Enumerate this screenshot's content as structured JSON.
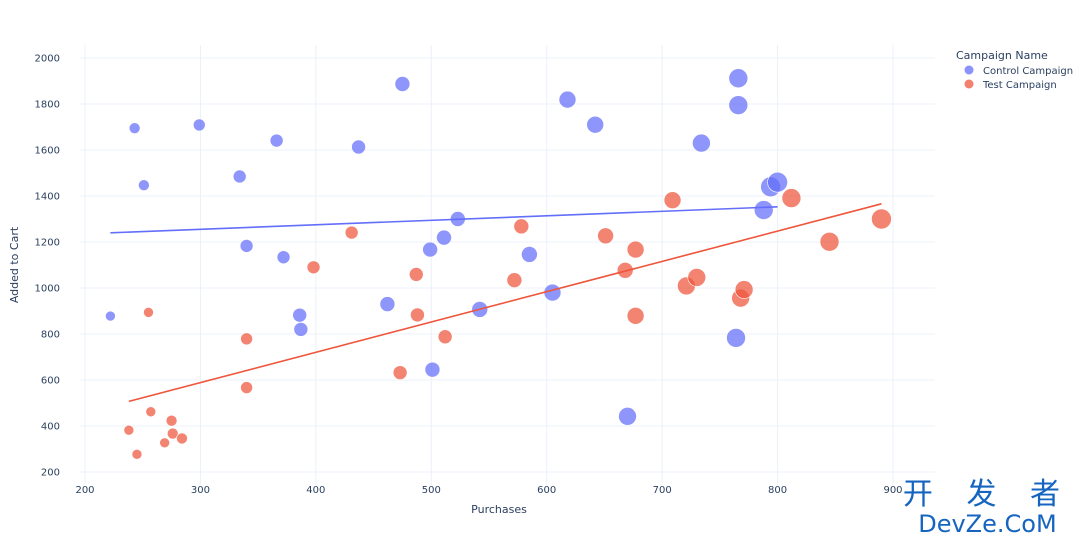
{
  "chart_data": {
    "type": "scatter",
    "xlabel": "Purchases",
    "ylabel": "Added to Cart",
    "xlim": [
      175,
      935
    ],
    "ylim": [
      185,
      2060
    ],
    "xticks": [
      200,
      300,
      400,
      500,
      600,
      700,
      800,
      900
    ],
    "yticks": [
      200,
      400,
      600,
      800,
      1000,
      1200,
      1400,
      1600,
      1800,
      2000
    ],
    "grid": true,
    "legend": {
      "title": "Campaign Name",
      "position": "top-right"
    },
    "series": [
      {
        "name": "Control Campaign",
        "color": "#636efa",
        "points": [
          {
            "x": 222,
            "y": 878,
            "size": 5
          },
          {
            "x": 243,
            "y": 1695,
            "size": 5.5
          },
          {
            "x": 251,
            "y": 1447,
            "size": 5.5
          },
          {
            "x": 299,
            "y": 1709,
            "size": 6
          },
          {
            "x": 334,
            "y": 1485,
            "size": 6.5
          },
          {
            "x": 340,
            "y": 1183,
            "size": 6.5
          },
          {
            "x": 366,
            "y": 1641,
            "size": 6.5
          },
          {
            "x": 372,
            "y": 1134,
            "size": 6.5
          },
          {
            "x": 386,
            "y": 882,
            "size": 7
          },
          {
            "x": 387,
            "y": 820,
            "size": 7
          },
          {
            "x": 437,
            "y": 1613,
            "size": 7
          },
          {
            "x": 462,
            "y": 930,
            "size": 7.5
          },
          {
            "x": 475,
            "y": 1887,
            "size": 7.5
          },
          {
            "x": 499,
            "y": 1167,
            "size": 7.5
          },
          {
            "x": 501,
            "y": 645,
            "size": 7.5
          },
          {
            "x": 511,
            "y": 1219,
            "size": 7.5
          },
          {
            "x": 523,
            "y": 1300,
            "size": 7.5
          },
          {
            "x": 542,
            "y": 907,
            "size": 8
          },
          {
            "x": 585,
            "y": 1146,
            "size": 8
          },
          {
            "x": 605,
            "y": 980,
            "size": 8.5
          },
          {
            "x": 618,
            "y": 1819,
            "size": 8.5
          },
          {
            "x": 642,
            "y": 1710,
            "size": 8.5
          },
          {
            "x": 670,
            "y": 442,
            "size": 9
          },
          {
            "x": 734,
            "y": 1630,
            "size": 9
          },
          {
            "x": 764,
            "y": 783,
            "size": 9.5
          },
          {
            "x": 766,
            "y": 1912,
            "size": 9.5
          },
          {
            "x": 766,
            "y": 1795,
            "size": 9.5
          },
          {
            "x": 788,
            "y": 1339,
            "size": 9.5
          },
          {
            "x": 794,
            "y": 1440,
            "size": 10
          },
          {
            "x": 800,
            "y": 1460,
            "size": 10
          }
        ],
        "trend": [
          [
            222,
            1240
          ],
          [
            800,
            1353
          ]
        ]
      },
      {
        "name": "Test Campaign",
        "color": "#ef553b",
        "points": [
          {
            "x": 238,
            "y": 382,
            "size": 5
          },
          {
            "x": 245,
            "y": 277,
            "size": 5
          },
          {
            "x": 255,
            "y": 894,
            "size": 5
          },
          {
            "x": 257,
            "y": 462,
            "size": 5
          },
          {
            "x": 269,
            "y": 327,
            "size": 5
          },
          {
            "x": 275,
            "y": 423,
            "size": 5.5
          },
          {
            "x": 276,
            "y": 367,
            "size": 5.5
          },
          {
            "x": 284,
            "y": 346,
            "size": 5.5
          },
          {
            "x": 340,
            "y": 779,
            "size": 6
          },
          {
            "x": 340,
            "y": 567,
            "size": 6
          },
          {
            "x": 398,
            "y": 1090,
            "size": 6.5
          },
          {
            "x": 431,
            "y": 1241,
            "size": 6.5
          },
          {
            "x": 473,
            "y": 632,
            "size": 7
          },
          {
            "x": 487,
            "y": 1059,
            "size": 7
          },
          {
            "x": 488,
            "y": 883,
            "size": 7
          },
          {
            "x": 512,
            "y": 788,
            "size": 7
          },
          {
            "x": 572,
            "y": 1034,
            "size": 7.5
          },
          {
            "x": 578,
            "y": 1268,
            "size": 7.5
          },
          {
            "x": 651,
            "y": 1227,
            "size": 8
          },
          {
            "x": 668,
            "y": 1077,
            "size": 8
          },
          {
            "x": 677,
            "y": 1167,
            "size": 8.5
          },
          {
            "x": 677,
            "y": 879,
            "size": 8.5
          },
          {
            "x": 709,
            "y": 1382,
            "size": 8.5
          },
          {
            "x": 721,
            "y": 1009,
            "size": 9
          },
          {
            "x": 730,
            "y": 1046,
            "size": 9
          },
          {
            "x": 768,
            "y": 956,
            "size": 9
          },
          {
            "x": 771,
            "y": 993,
            "size": 9
          },
          {
            "x": 812,
            "y": 1391,
            "size": 9.5
          },
          {
            "x": 845,
            "y": 1201,
            "size": 9.5
          },
          {
            "x": 890,
            "y": 1300,
            "size": 10
          }
        ],
        "trend": [
          [
            238,
            507
          ],
          [
            890,
            1366
          ]
        ]
      }
    ]
  },
  "watermark": {
    "top": "开 发 者",
    "bottom": "DevZe.CoM"
  }
}
